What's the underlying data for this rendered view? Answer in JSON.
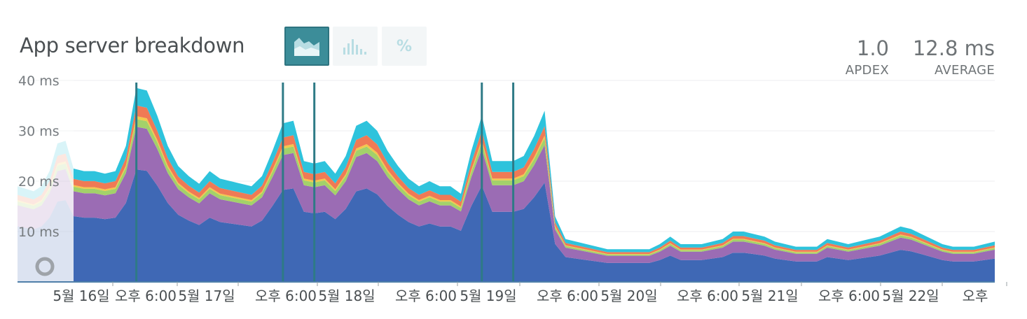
{
  "header": {
    "title": "App server breakdown",
    "view_buttons": [
      {
        "icon": "area-chart-icon",
        "active": true
      },
      {
        "icon": "histogram-icon",
        "active": false
      },
      {
        "label": "%",
        "icon": "percent-icon",
        "active": false
      }
    ]
  },
  "metrics": {
    "apdex": {
      "value": "1.0",
      "label": "APDEX"
    },
    "average": {
      "value": "12.8 ms",
      "label": "AVERAGE"
    }
  },
  "chart_data": {
    "type": "area",
    "stacked": true,
    "y_unit": "ms",
    "ylim": [
      0,
      40
    ],
    "y_ticks": [
      "40 ms",
      "30 ms",
      "20 ms",
      "10 ms"
    ],
    "x_ticks": [
      "5월 16일",
      "오후 6:00",
      "5월 17일",
      "오후 6:00",
      "5월 18일",
      "오후 6:00",
      "5월 19일",
      "오후 6:00",
      "5월 20일",
      "오후 6:00",
      "5월 21일",
      "오후 6:00",
      "5월 22일",
      "오후"
    ],
    "x": [
      0,
      1,
      2,
      3,
      4,
      5,
      6,
      7,
      8,
      9,
      10,
      11,
      12,
      13,
      14,
      15,
      16,
      17,
      18,
      19,
      20,
      21,
      22,
      23,
      24,
      25,
      26,
      27,
      28,
      29,
      30,
      31,
      32,
      33,
      34,
      35,
      36,
      37,
      38,
      39,
      40,
      41,
      42,
      43,
      44,
      45,
      46,
      47,
      48,
      49,
      50,
      51,
      52,
      53,
      54,
      55,
      56,
      57,
      58,
      59,
      60,
      61,
      62,
      63,
      64,
      65,
      66,
      67,
      68,
      69,
      70,
      71,
      72,
      73,
      74,
      75,
      76,
      77,
      78,
      79,
      80,
      81,
      82,
      83,
      84,
      85,
      86,
      87,
      88
    ],
    "totals": [
      22.5,
      22,
      22,
      21.5,
      22,
      27,
      38.5,
      38,
      33,
      27,
      23,
      21,
      19.5,
      22,
      20.5,
      20,
      19.5,
      19,
      21,
      26,
      31.5,
      32,
      24,
      23.5,
      24,
      21.5,
      25,
      31,
      32,
      30,
      26,
      23,
      20.5,
      19,
      20,
      19,
      19,
      17.5,
      26,
      33,
      24,
      24,
      24,
      25,
      29,
      34,
      13,
      8.5,
      8,
      7.5,
      7,
      6.5,
      6.5,
      6.5,
      6.5,
      6.5,
      7.5,
      9,
      7.5,
      7.5,
      7.5,
      8,
      8.5,
      10,
      10,
      9.5,
      9,
      8,
      7.5,
      7,
      7,
      7,
      8.5,
      8,
      7.5,
      8,
      8.5,
      9,
      10,
      11,
      10.5,
      9.5,
      8.5,
      7.5,
      7,
      7,
      7,
      7.5,
      8
    ],
    "series": [
      {
        "name": "",
        "color": "#3f68b5",
        "fraction": 0.58
      },
      {
        "name": "",
        "color": "#9b6cb4",
        "fraction": 0.22
      },
      {
        "name": "",
        "color": "#a3d16a",
        "fraction": 0.04
      },
      {
        "name": "",
        "color": "#f2c94c",
        "fraction": 0.015
      },
      {
        "name": "",
        "color": "#ef7a55",
        "fraction": 0.055
      },
      {
        "name": "",
        "color": "#2ec3dc",
        "fraction": 0.09
      }
    ],
    "deployment_markers": [
      6,
      20,
      23,
      39,
      42
    ],
    "grid": true,
    "legend": "none"
  }
}
